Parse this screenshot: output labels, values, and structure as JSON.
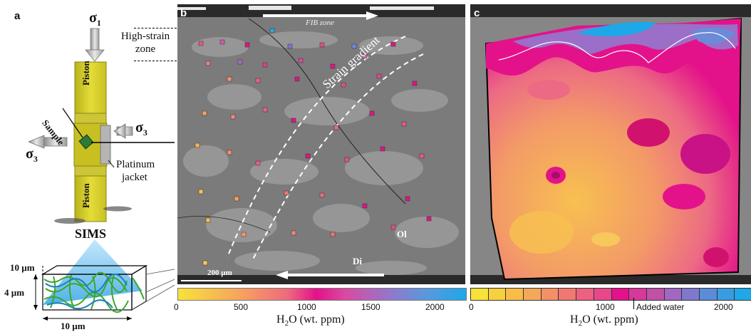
{
  "panel_a": {
    "letter": "a",
    "sigma1": "σ",
    "sigma1_sub": "1",
    "sigma3_left": "σ",
    "sigma3_left_sub": "3",
    "sigma3_right": "σ",
    "sigma3_right_sub": "3",
    "piston_top": "Piston",
    "piston_bottom": "Piston",
    "sample_label": "Sample",
    "jacket_label_1": "Platinum",
    "jacket_label_2": "jacket",
    "sims_label": "SIMS",
    "dim_top": "10 µm",
    "dim_side": "4 µm",
    "dim_bottom": "10 µm"
  },
  "panel_b": {
    "letter": "b",
    "high_strain_1": "High-strain",
    "high_strain_2": "zone",
    "fib_zone": "FIB zone",
    "strain_gradient": "Strain gradient",
    "mineral_ol": "Ol",
    "mineral_di": "Di",
    "scale_bar": "200 µm"
  },
  "panel_c": {
    "letter": "c"
  },
  "colorbar_b": {
    "ticks": [
      "0",
      "500",
      "1000",
      "1500",
      "2000"
    ],
    "label_main": "H",
    "label_sub": "2",
    "label_rest": "O (wt. ppm)"
  },
  "colorbar_c": {
    "ticks": [
      "0",
      "1000",
      "2000"
    ],
    "annotation": "Added water",
    "label_main": "H",
    "label_sub": "2",
    "label_rest": "O (wt. ppm)"
  },
  "colors": {
    "piston": "#d8d02a",
    "sem_bg": "#7c7c7c",
    "cmap_low": "#f7e23a",
    "cmap_mid": "#e3128a",
    "cmap_high": "#1ea8e8"
  }
}
